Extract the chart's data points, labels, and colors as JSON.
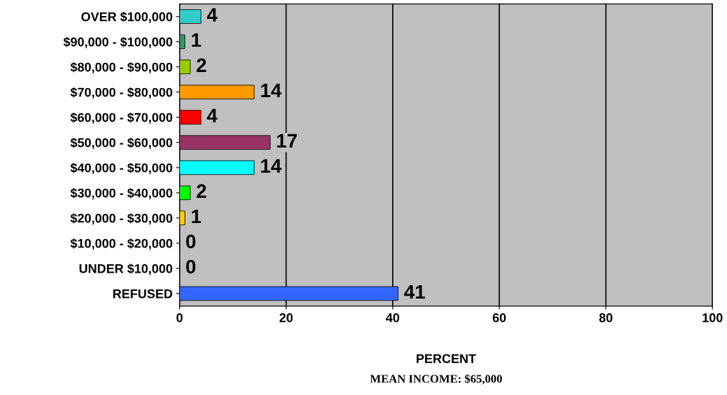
{
  "chart_data": {
    "type": "bar",
    "orientation": "horizontal",
    "categories": [
      "OVER $100,000",
      "$90,000 - $100,000",
      "$80,000 - $90,000",
      "$70,000 - $80,000",
      "$60,000 - $70,000",
      "$50,000 - $60,000",
      "$40,000 - $50,000",
      "$30,000 - $40,000",
      "$20,000 - $30,000",
      "$10,000 - $20,000",
      "UNDER $10,000",
      "REFUSED"
    ],
    "values": [
      4,
      1,
      2,
      14,
      4,
      17,
      14,
      2,
      1,
      0,
      0,
      41
    ],
    "colors": [
      "#33cccc",
      "#339966",
      "#99cc00",
      "#ff9900",
      "#ff0000",
      "#993366",
      "#00ffff",
      "#00ff00",
      "#ffcc00",
      "#cc00cc",
      "#cccc00",
      "#3366ff"
    ],
    "xlabel": "PERCENT",
    "xlim": [
      0,
      100
    ],
    "xticks": [
      0,
      20,
      40,
      60,
      80,
      100
    ],
    "grid": "x",
    "data_labels": true,
    "annotations": [
      "MEAN INCOME: $65,000"
    ]
  }
}
